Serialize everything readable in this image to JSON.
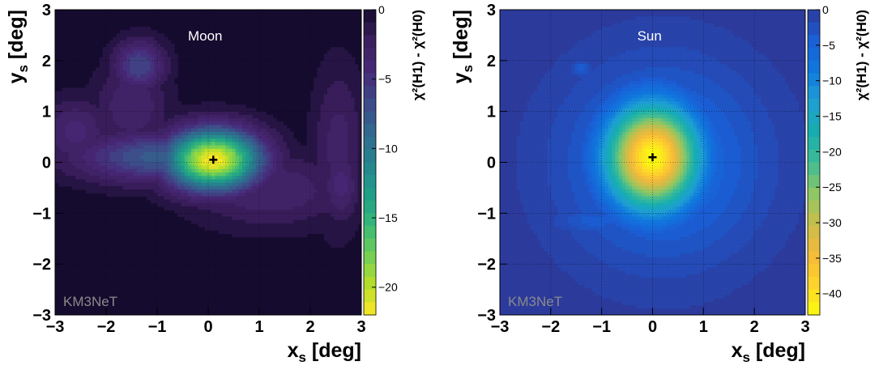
{
  "chart_data": [
    {
      "type": "heatmap",
      "title": "Moon",
      "watermark": "KM3NeT",
      "xlabel": "x",
      "xlabel_sub": "s",
      "xlabel_unit": " [deg]",
      "ylabel": "y",
      "ylabel_sub": "s",
      "ylabel_unit": " [deg]",
      "xlim": [
        -3,
        3
      ],
      "ylim": [
        -3,
        3
      ],
      "x_ticks": [
        "−3",
        "−2",
        "−1",
        "0",
        "1",
        "2",
        "3"
      ],
      "y_ticks": [
        "−3",
        "−2",
        "−1",
        "0",
        "1",
        "2",
        "3"
      ],
      "grid": true,
      "colorbar_label": "χ²(H1) - χ²(H0)",
      "colorbar_range": [
        -22,
        0
      ],
      "colorbar_ticks": [
        "0",
        "−5",
        "−10",
        "−15",
        "−20"
      ],
      "colormap": "viridis",
      "background_color": "#150b2e",
      "marker": {
        "x": 0.1,
        "y": 0.05,
        "symbol": "+"
      },
      "features": [
        {
          "x": 0.1,
          "y": 0.05,
          "value": -22,
          "sx": 0.65,
          "sy": 0.42
        },
        {
          "x": -0.9,
          "y": 0.1,
          "value": -8,
          "sx": 1.2,
          "sy": 0.35
        },
        {
          "x": -1.35,
          "y": 1.9,
          "value": -6.5,
          "sx": 0.35,
          "sy": 0.35
        },
        {
          "x": -1.5,
          "y": 1.1,
          "value": -3.5,
          "sx": 0.5,
          "sy": 0.6
        },
        {
          "x": -2.6,
          "y": 0.6,
          "value": -4,
          "sx": 0.45,
          "sy": 0.45
        },
        {
          "x": 1.2,
          "y": -0.55,
          "value": -3.5,
          "sx": 1.1,
          "sy": 0.5
        },
        {
          "x": 2.55,
          "y": 0.3,
          "value": -3,
          "sx": 0.35,
          "sy": 1.1
        },
        {
          "x": 2.6,
          "y": -0.45,
          "value": -4,
          "sx": 0.25,
          "sy": 0.5
        }
      ]
    },
    {
      "type": "heatmap",
      "title": "Sun",
      "watermark": "KM3NeT",
      "xlabel": "x",
      "xlabel_sub": "s",
      "xlabel_unit": " [deg]",
      "ylabel": "y",
      "ylabel_sub": "s",
      "ylabel_unit": " [deg]",
      "xlim": [
        -3,
        3
      ],
      "ylim": [
        -3,
        3
      ],
      "x_ticks": [
        "−3",
        "−2",
        "−1",
        "0",
        "1",
        "2",
        "3"
      ],
      "y_ticks": [
        "−3",
        "−2",
        "−1",
        "0",
        "1",
        "2",
        "3"
      ],
      "grid": true,
      "colorbar_label": "χ²(H1) - χ²(H0)",
      "colorbar_range": [
        -43,
        0
      ],
      "colorbar_ticks": [
        "0",
        "−5",
        "−10",
        "−15",
        "−20",
        "−25",
        "−30",
        "−35",
        "−40"
      ],
      "colormap": "parula",
      "background_color": "#2c3a9c",
      "marker": {
        "x": 0.0,
        "y": 0.1,
        "symbol": "+"
      },
      "features": [
        {
          "x": 0.0,
          "y": 0.1,
          "value": -43,
          "sx": 0.62,
          "sy": 0.7
        },
        {
          "x": 0.2,
          "y": 0.0,
          "value": -7,
          "sx": 1.3,
          "sy": 1.3
        },
        {
          "x": 1.2,
          "y": -0.6,
          "value": -4,
          "sx": 0.7,
          "sy": 0.6
        },
        {
          "x": -1.1,
          "y": -1.15,
          "value": -4,
          "sx": 0.6,
          "sy": 0.2
        },
        {
          "x": -1.4,
          "y": 1.85,
          "value": -4,
          "sx": 0.15,
          "sy": 0.12
        }
      ]
    }
  ]
}
